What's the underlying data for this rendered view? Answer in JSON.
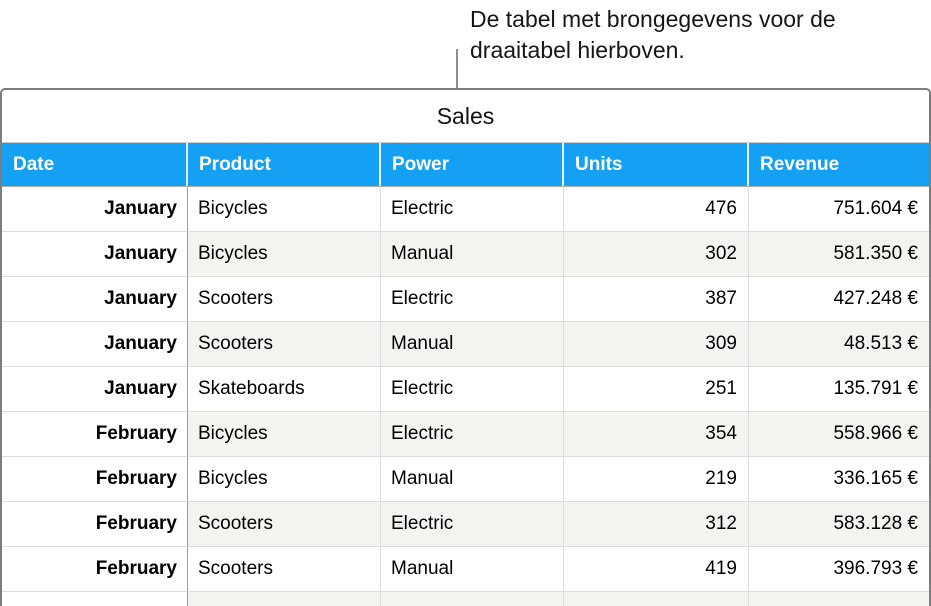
{
  "callout": {
    "line1": "De tabel met brongegevens voor de",
    "line2": "draaitabel hierboven."
  },
  "table": {
    "title": "Sales",
    "columns": [
      "Date",
      "Product",
      "Power",
      "Units",
      "Revenue"
    ],
    "rows": [
      [
        "January",
        "Bicycles",
        "Electric",
        "476",
        "751.604 €"
      ],
      [
        "January",
        "Bicycles",
        "Manual",
        "302",
        "581.350 €"
      ],
      [
        "January",
        "Scooters",
        "Electric",
        "387",
        "427.248 €"
      ],
      [
        "January",
        "Scooters",
        "Manual",
        "309",
        "48.513 €"
      ],
      [
        "January",
        "Skateboards",
        "Electric",
        "251",
        "135.791 €"
      ],
      [
        "February",
        "Bicycles",
        "Electric",
        "354",
        "558.966 €"
      ],
      [
        "February",
        "Bicycles",
        "Manual",
        "219",
        "336.165 €"
      ],
      [
        "February",
        "Scooters",
        "Electric",
        "312",
        "583.128 €"
      ],
      [
        "February",
        "Scooters",
        "Manual",
        "419",
        "396.793 €"
      ]
    ],
    "partial_row_visible": true
  },
  "colors": {
    "header_bg": "#14A1F4",
    "alt_row_bg": "#F3F3F0",
    "grid_line": "#DCDCDC",
    "outer_border": "#7D7D7D",
    "header_col_divider": "#9E9E9E",
    "callout_line": "#8F8F8F"
  }
}
